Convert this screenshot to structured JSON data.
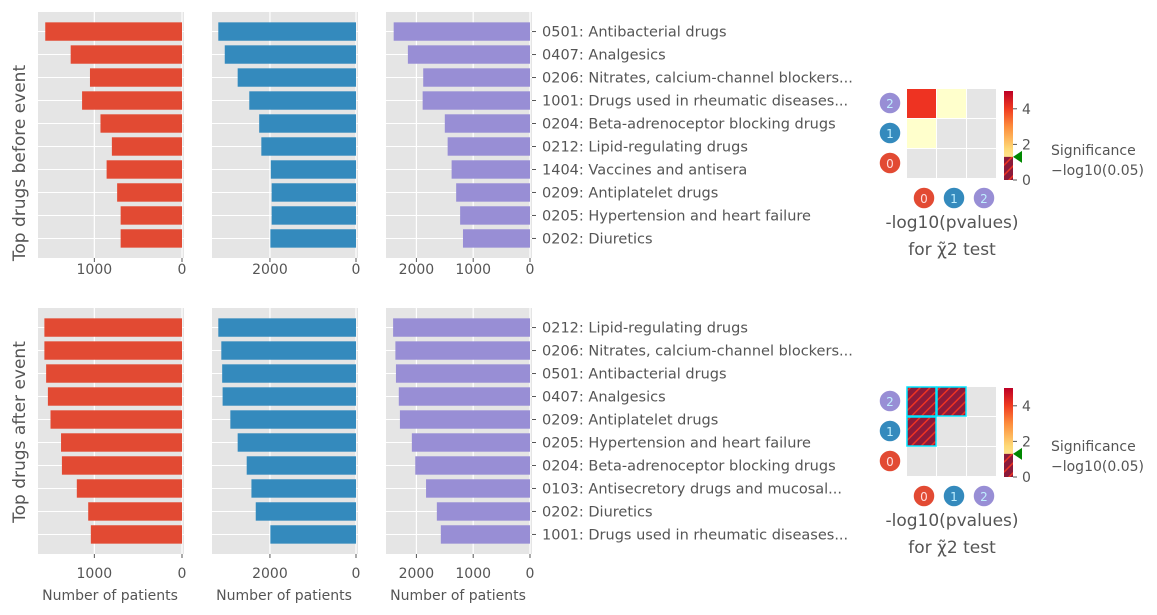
{
  "colors": {
    "panel_bg": "#e5e5e5",
    "grid": "#ffffff",
    "text": "#555555",
    "orange": "#e24a33",
    "blue": "#348abd",
    "purple": "#988ed5",
    "heat_high": "#ee3322",
    "heat_low": "#ffffcc",
    "hatch_stroke": "#00e5ff",
    "hatch_fill": "#8b1a3a",
    "marker_green": "#008800"
  },
  "row_labels": {
    "top": "Top drugs before event",
    "bottom": "Top drugs after event"
  },
  "xlabel": "Number of patients",
  "heatmap_title_line1": "-log10(pvalues)",
  "heatmap_title_line2": "for χ̃2 test",
  "colorbar_label_line1": "Significance",
  "colorbar_label_line2": "−log10(0.05)",
  "chart_data": [
    {
      "type": "bar",
      "orientation": "horizontal",
      "group": "before",
      "categories": [
        "0501: Antibacterial drugs",
        "0407: Analgesics",
        "0206: Nitrates, calcium-channel blockers...",
        "1001: Drugs used in rheumatic diseases...",
        "0204: Beta-adrenoceptor blocking drugs",
        "0212: Lipid-regulating drugs",
        "1404: Vaccines and antisera",
        "0209: Antiplatelet drugs",
        "0205: Hypertension and heart failure",
        "0202: Diuretics"
      ],
      "series": [
        {
          "values": [
            1560,
            1270,
            1050,
            1140,
            930,
            800,
            860,
            740,
            700,
            700
          ]
        },
        {
          "values": [
            3200,
            3050,
            2750,
            2480,
            2250,
            2200,
            1980,
            1960,
            1960,
            1990
          ]
        },
        {
          "values": [
            2400,
            2150,
            1880,
            1890,
            1500,
            1450,
            1380,
            1300,
            1230,
            1180
          ]
        }
      ],
      "x_ticks": [
        [
          "1000",
          "0"
        ],
        [
          "2000",
          "0"
        ],
        [
          "2000",
          "1000",
          "0"
        ]
      ],
      "xlim": [
        [
          0,
          1620
        ],
        [
          0,
          3300
        ],
        [
          0,
          2500
        ]
      ]
    },
    {
      "type": "bar",
      "orientation": "horizontal",
      "group": "after",
      "categories": [
        "0212: Lipid-regulating drugs",
        "0206: Nitrates, calcium-channel blockers...",
        "0501: Antibacterial drugs",
        "0407: Analgesics",
        "0209: Antiplatelet drugs",
        "0205: Hypertension and heart failure",
        "0204: Beta-adrenoceptor blocking drugs",
        "0103: Antisecretory drugs and mucosal...",
        "0202: Diuretics",
        "1001: Drugs used in rheumatic diseases..."
      ],
      "series": [
        {
          "values": [
            1570,
            1570,
            1550,
            1530,
            1500,
            1380,
            1370,
            1200,
            1070,
            1040
          ]
        },
        {
          "values": [
            3200,
            3130,
            3110,
            3100,
            2920,
            2750,
            2540,
            2430,
            2330,
            1990
          ]
        },
        {
          "values": [
            2410,
            2370,
            2360,
            2310,
            2290,
            2080,
            2020,
            1830,
            1640,
            1570
          ]
        }
      ],
      "x_ticks": [
        [
          "1000",
          "0"
        ],
        [
          "2000",
          "0"
        ],
        [
          "2000",
          "1000",
          "0"
        ]
      ],
      "xlim": [
        [
          0,
          1620
        ],
        [
          0,
          3300
        ],
        [
          0,
          2500
        ]
      ]
    },
    {
      "type": "heatmap",
      "group": "before",
      "row_markers": [
        "2",
        "1",
        "0"
      ],
      "col_markers": [
        "0",
        "1",
        "2"
      ],
      "cells": [
        [
          "high",
          "low",
          "none"
        ],
        [
          "low",
          "none",
          "none"
        ],
        [
          "none",
          "none",
          "none"
        ]
      ],
      "colorbar_ticks": [
        "4",
        "2",
        "0"
      ],
      "colorbar_range": [
        0,
        5
      ],
      "threshold": 1.3
    },
    {
      "type": "heatmap",
      "group": "after",
      "row_markers": [
        "2",
        "1",
        "0"
      ],
      "col_markers": [
        "0",
        "1",
        "2"
      ],
      "cells": [
        [
          "hatched",
          "hatched",
          "none"
        ],
        [
          "hatched",
          "none",
          "none"
        ],
        [
          "none",
          "none",
          "none"
        ]
      ],
      "colorbar_ticks": [
        "4",
        "2",
        "0"
      ],
      "colorbar_range": [
        0,
        5
      ],
      "threshold": 1.3
    }
  ]
}
